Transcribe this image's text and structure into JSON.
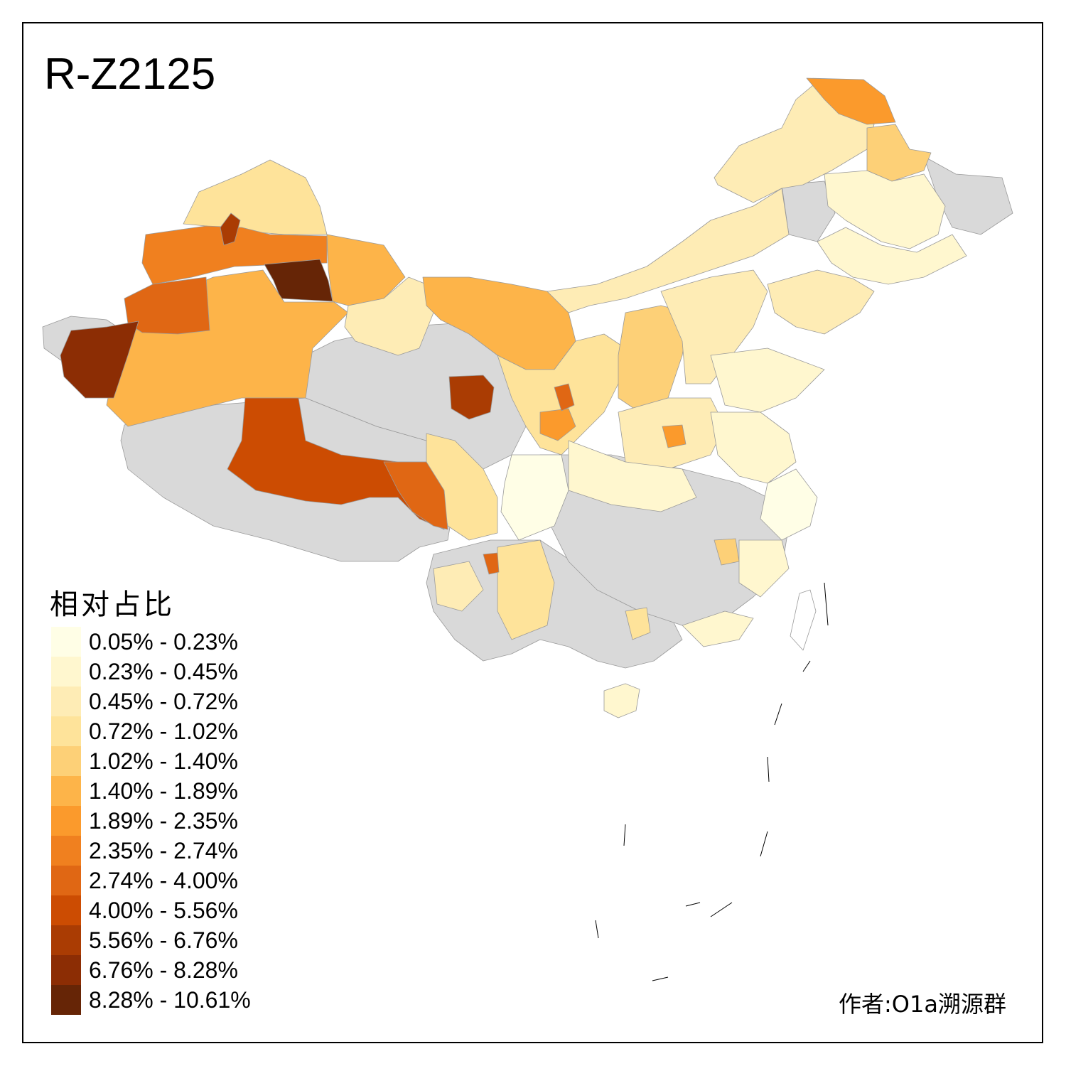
{
  "title": "R-Z2125",
  "legend": {
    "title": "相对占比",
    "classes": [
      {
        "label": "0.05% - 0.23%",
        "color": "#fffee6"
      },
      {
        "label": "0.23% - 0.45%",
        "color": "#fff7cf"
      },
      {
        "label": "0.45% - 0.72%",
        "color": "#feecb5"
      },
      {
        "label": "0.72% - 1.02%",
        "color": "#fee39a"
      },
      {
        "label": "1.02% - 1.40%",
        "color": "#fdd077"
      },
      {
        "label": "1.40% - 1.89%",
        "color": "#fdb449"
      },
      {
        "label": "1.89% - 2.35%",
        "color": "#fb9a2c"
      },
      {
        "label": "2.35% - 2.74%",
        "color": "#f0801f"
      },
      {
        "label": "2.74% - 4.00%",
        "color": "#e06714"
      },
      {
        "label": "4.00% - 5.56%",
        "color": "#cc4c02"
      },
      {
        "label": "5.56% - 6.76%",
        "color": "#aa3c03"
      },
      {
        "label": "6.76% - 8.28%",
        "color": "#8c2d04"
      },
      {
        "label": "8.28% - 10.61%",
        "color": "#662506"
      }
    ]
  },
  "no_data_color": "#d9d9d9",
  "author": "作者:O1a溯源群"
}
